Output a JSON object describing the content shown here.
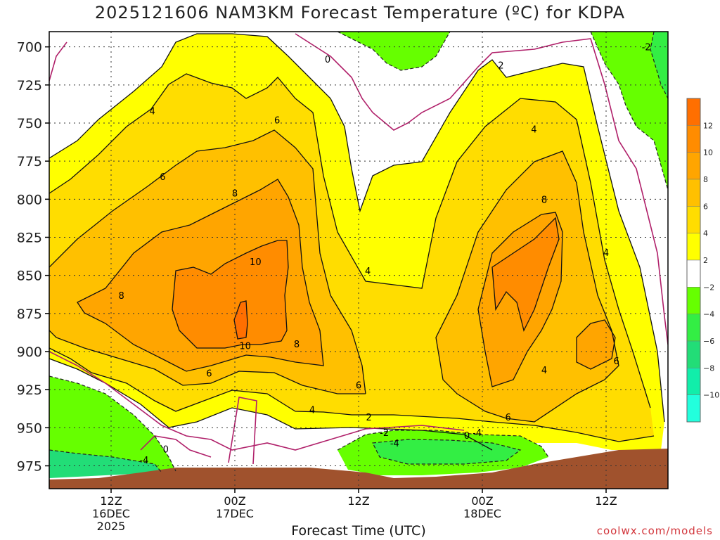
{
  "chart_data": {
    "type": "heatmap",
    "title": "2025121606 NAM3KM Forecast Temperature (ºC) for KDPA",
    "xlabel": "Forecast Time (UTC)",
    "ylabel": "",
    "yaxis": {
      "ticks": [
        700,
        725,
        750,
        775,
        800,
        825,
        850,
        875,
        900,
        925,
        950,
        975
      ],
      "range": [
        690,
        990
      ],
      "inverted": true
    },
    "xaxis": {
      "range_hours": [
        0,
        60
      ],
      "ticks": [
        {
          "hour": 6,
          "lines": [
            "12Z",
            "16DEC",
            "2025"
          ]
        },
        {
          "hour": 18,
          "lines": [
            "00Z",
            "17DEC"
          ]
        },
        {
          "hour": 30,
          "lines": [
            "12Z"
          ]
        },
        {
          "hour": 42,
          "lines": [
            "00Z",
            "18DEC"
          ]
        },
        {
          "hour": 54,
          "lines": [
            "12Z"
          ]
        }
      ]
    },
    "grid": true,
    "colorbar": {
      "position": "right",
      "levels": [
        {
          "range": [
            12,
            14
          ],
          "color": "#ff6f00",
          "label": "12"
        },
        {
          "range": [
            10,
            12
          ],
          "color": "#ff8c00",
          "label": "10"
        },
        {
          "range": [
            8,
            10
          ],
          "color": "#ffa500",
          "label": "8"
        },
        {
          "range": [
            6,
            8
          ],
          "color": "#ffc000",
          "label": "6"
        },
        {
          "range": [
            4,
            6
          ],
          "color": "#ffdd00",
          "label": "4"
        },
        {
          "range": [
            2,
            4
          ],
          "color": "#ffff00",
          "label": "2"
        },
        {
          "range": [
            -2,
            2
          ],
          "color": "#ffffff",
          "label": "−2"
        },
        {
          "range": [
            -4,
            -2
          ],
          "color": "#66ff00",
          "label": "−4"
        },
        {
          "range": [
            -6,
            -4
          ],
          "color": "#33ee44",
          "label": "−6"
        },
        {
          "range": [
            -8,
            -6
          ],
          "color": "#22dd77",
          "label": "−8"
        },
        {
          "range": [
            -10,
            -8
          ],
          "color": "#11eeaa",
          "label": "−10"
        },
        {
          "range": [
            -12,
            -10
          ],
          "color": "#22ffdd",
          "label": ""
        }
      ]
    },
    "contour_labels": [
      {
        "text": "0",
        "hour": 27.0,
        "p": 708
      },
      {
        "text": "2",
        "hour": 43.8,
        "p": 712
      },
      {
        "text": "-2",
        "hour": 57.9,
        "p": 700
      },
      {
        "text": "4",
        "hour": 10.0,
        "p": 742
      },
      {
        "text": "6",
        "hour": 22.1,
        "p": 748
      },
      {
        "text": "4",
        "hour": 47.0,
        "p": 754
      },
      {
        "text": "6",
        "hour": 11.0,
        "p": 785
      },
      {
        "text": "8",
        "hour": 18.0,
        "p": 796
      },
      {
        "text": "8",
        "hour": 48.0,
        "p": 800
      },
      {
        "text": "10",
        "hour": 20.0,
        "p": 841
      },
      {
        "text": "4",
        "hour": 54.0,
        "p": 835
      },
      {
        "text": "4",
        "hour": 30.9,
        "p": 847
      },
      {
        "text": "8",
        "hour": 7.0,
        "p": 863
      },
      {
        "text": "10",
        "hour": 19.0,
        "p": 896
      },
      {
        "text": "8",
        "hour": 24.0,
        "p": 895
      },
      {
        "text": "4",
        "hour": 48.0,
        "p": 912
      },
      {
        "text": "6",
        "hour": 55.0,
        "p": 906
      },
      {
        "text": "6",
        "hour": 15.5,
        "p": 914
      },
      {
        "text": "6",
        "hour": 30.0,
        "p": 922
      },
      {
        "text": "4",
        "hour": 25.5,
        "p": 938
      },
      {
        "text": "2",
        "hour": 31.0,
        "p": 943
      },
      {
        "text": "6",
        "hour": 44.5,
        "p": 943
      },
      {
        "text": "-2",
        "hour": 32.5,
        "p": 953
      },
      {
        "text": "0",
        "hour": 40.5,
        "p": 955
      },
      {
        "text": "-4",
        "hour": 41.5,
        "p": 953
      },
      {
        "text": "-4",
        "hour": 33.5,
        "p": 960
      },
      {
        "text": "0",
        "hour": 11.3,
        "p": 964
      },
      {
        "text": "-4",
        "hour": 9.2,
        "p": 971
      }
    ]
  },
  "credit": "coolwx.com/models"
}
